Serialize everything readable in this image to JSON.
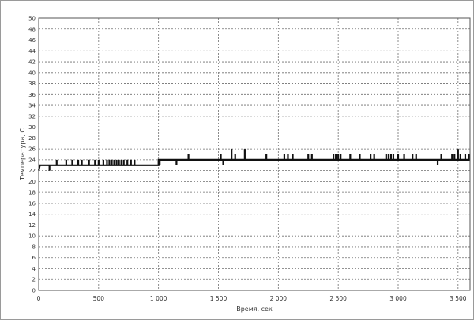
{
  "chart_data": {
    "type": "line",
    "title": "",
    "xlabel": "Время, сек",
    "ylabel": "Температура, С",
    "xlim": [
      0,
      3600
    ],
    "ylim": [
      0,
      50
    ],
    "x_ticks": [
      0,
      500,
      1000,
      1500,
      2000,
      2500,
      3000,
      3500
    ],
    "x_tick_labels": [
      "0",
      "500",
      "1 000",
      "1 500",
      "2 000",
      "2 500",
      "3 000",
      "3 500"
    ],
    "y_ticks": [
      0,
      2,
      4,
      6,
      8,
      10,
      12,
      14,
      16,
      18,
      20,
      22,
      24,
      26,
      28,
      30,
      32,
      34,
      36,
      38,
      40,
      42,
      44,
      46,
      48,
      50
    ],
    "grid": true,
    "legend": "none",
    "series": [
      {
        "color": "#111111",
        "baseline": [
          {
            "x": 0,
            "y": 22
          },
          {
            "x": 10,
            "y": 23
          },
          {
            "x": 1000,
            "y": 23
          },
          {
            "x": 1000,
            "y": 24
          },
          {
            "x": 3600,
            "y": 24
          }
        ],
        "spikes": [
          {
            "x": 90,
            "y": 22
          },
          {
            "x": 150,
            "y": 24
          },
          {
            "x": 230,
            "y": 24
          },
          {
            "x": 280,
            "y": 24
          },
          {
            "x": 330,
            "y": 24
          },
          {
            "x": 360,
            "y": 24
          },
          {
            "x": 420,
            "y": 24
          },
          {
            "x": 470,
            "y": 24
          },
          {
            "x": 500,
            "y": 24
          },
          {
            "x": 540,
            "y": 24
          },
          {
            "x": 570,
            "y": 24
          },
          {
            "x": 590,
            "y": 24
          },
          {
            "x": 610,
            "y": 24
          },
          {
            "x": 630,
            "y": 24
          },
          {
            "x": 650,
            "y": 24
          },
          {
            "x": 670,
            "y": 24
          },
          {
            "x": 690,
            "y": 24
          },
          {
            "x": 710,
            "y": 24
          },
          {
            "x": 740,
            "y": 24
          },
          {
            "x": 770,
            "y": 24
          },
          {
            "x": 800,
            "y": 24
          },
          {
            "x": 980,
            "y": 23
          },
          {
            "x": 1010,
            "y": 23
          },
          {
            "x": 1150,
            "y": 23
          },
          {
            "x": 1250,
            "y": 25
          },
          {
            "x": 1520,
            "y": 25
          },
          {
            "x": 1540,
            "y": 23
          },
          {
            "x": 1610,
            "y": 26
          },
          {
            "x": 1640,
            "y": 25
          },
          {
            "x": 1720,
            "y": 26
          },
          {
            "x": 1900,
            "y": 25
          },
          {
            "x": 2050,
            "y": 25
          },
          {
            "x": 2080,
            "y": 25
          },
          {
            "x": 2120,
            "y": 25
          },
          {
            "x": 2250,
            "y": 25
          },
          {
            "x": 2280,
            "y": 25
          },
          {
            "x": 2460,
            "y": 25
          },
          {
            "x": 2480,
            "y": 25
          },
          {
            "x": 2500,
            "y": 25
          },
          {
            "x": 2520,
            "y": 25
          },
          {
            "x": 2600,
            "y": 25
          },
          {
            "x": 2680,
            "y": 25
          },
          {
            "x": 2770,
            "y": 25
          },
          {
            "x": 2800,
            "y": 25
          },
          {
            "x": 2900,
            "y": 25
          },
          {
            "x": 2920,
            "y": 25
          },
          {
            "x": 2940,
            "y": 25
          },
          {
            "x": 2960,
            "y": 25
          },
          {
            "x": 3000,
            "y": 25
          },
          {
            "x": 3050,
            "y": 25
          },
          {
            "x": 3120,
            "y": 25
          },
          {
            "x": 3150,
            "y": 25
          },
          {
            "x": 3330,
            "y": 23
          },
          {
            "x": 3360,
            "y": 25
          },
          {
            "x": 3450,
            "y": 25
          },
          {
            "x": 3470,
            "y": 25
          },
          {
            "x": 3500,
            "y": 26
          },
          {
            "x": 3520,
            "y": 25
          },
          {
            "x": 3560,
            "y": 25
          },
          {
            "x": 3590,
            "y": 25
          }
        ]
      }
    ]
  }
}
